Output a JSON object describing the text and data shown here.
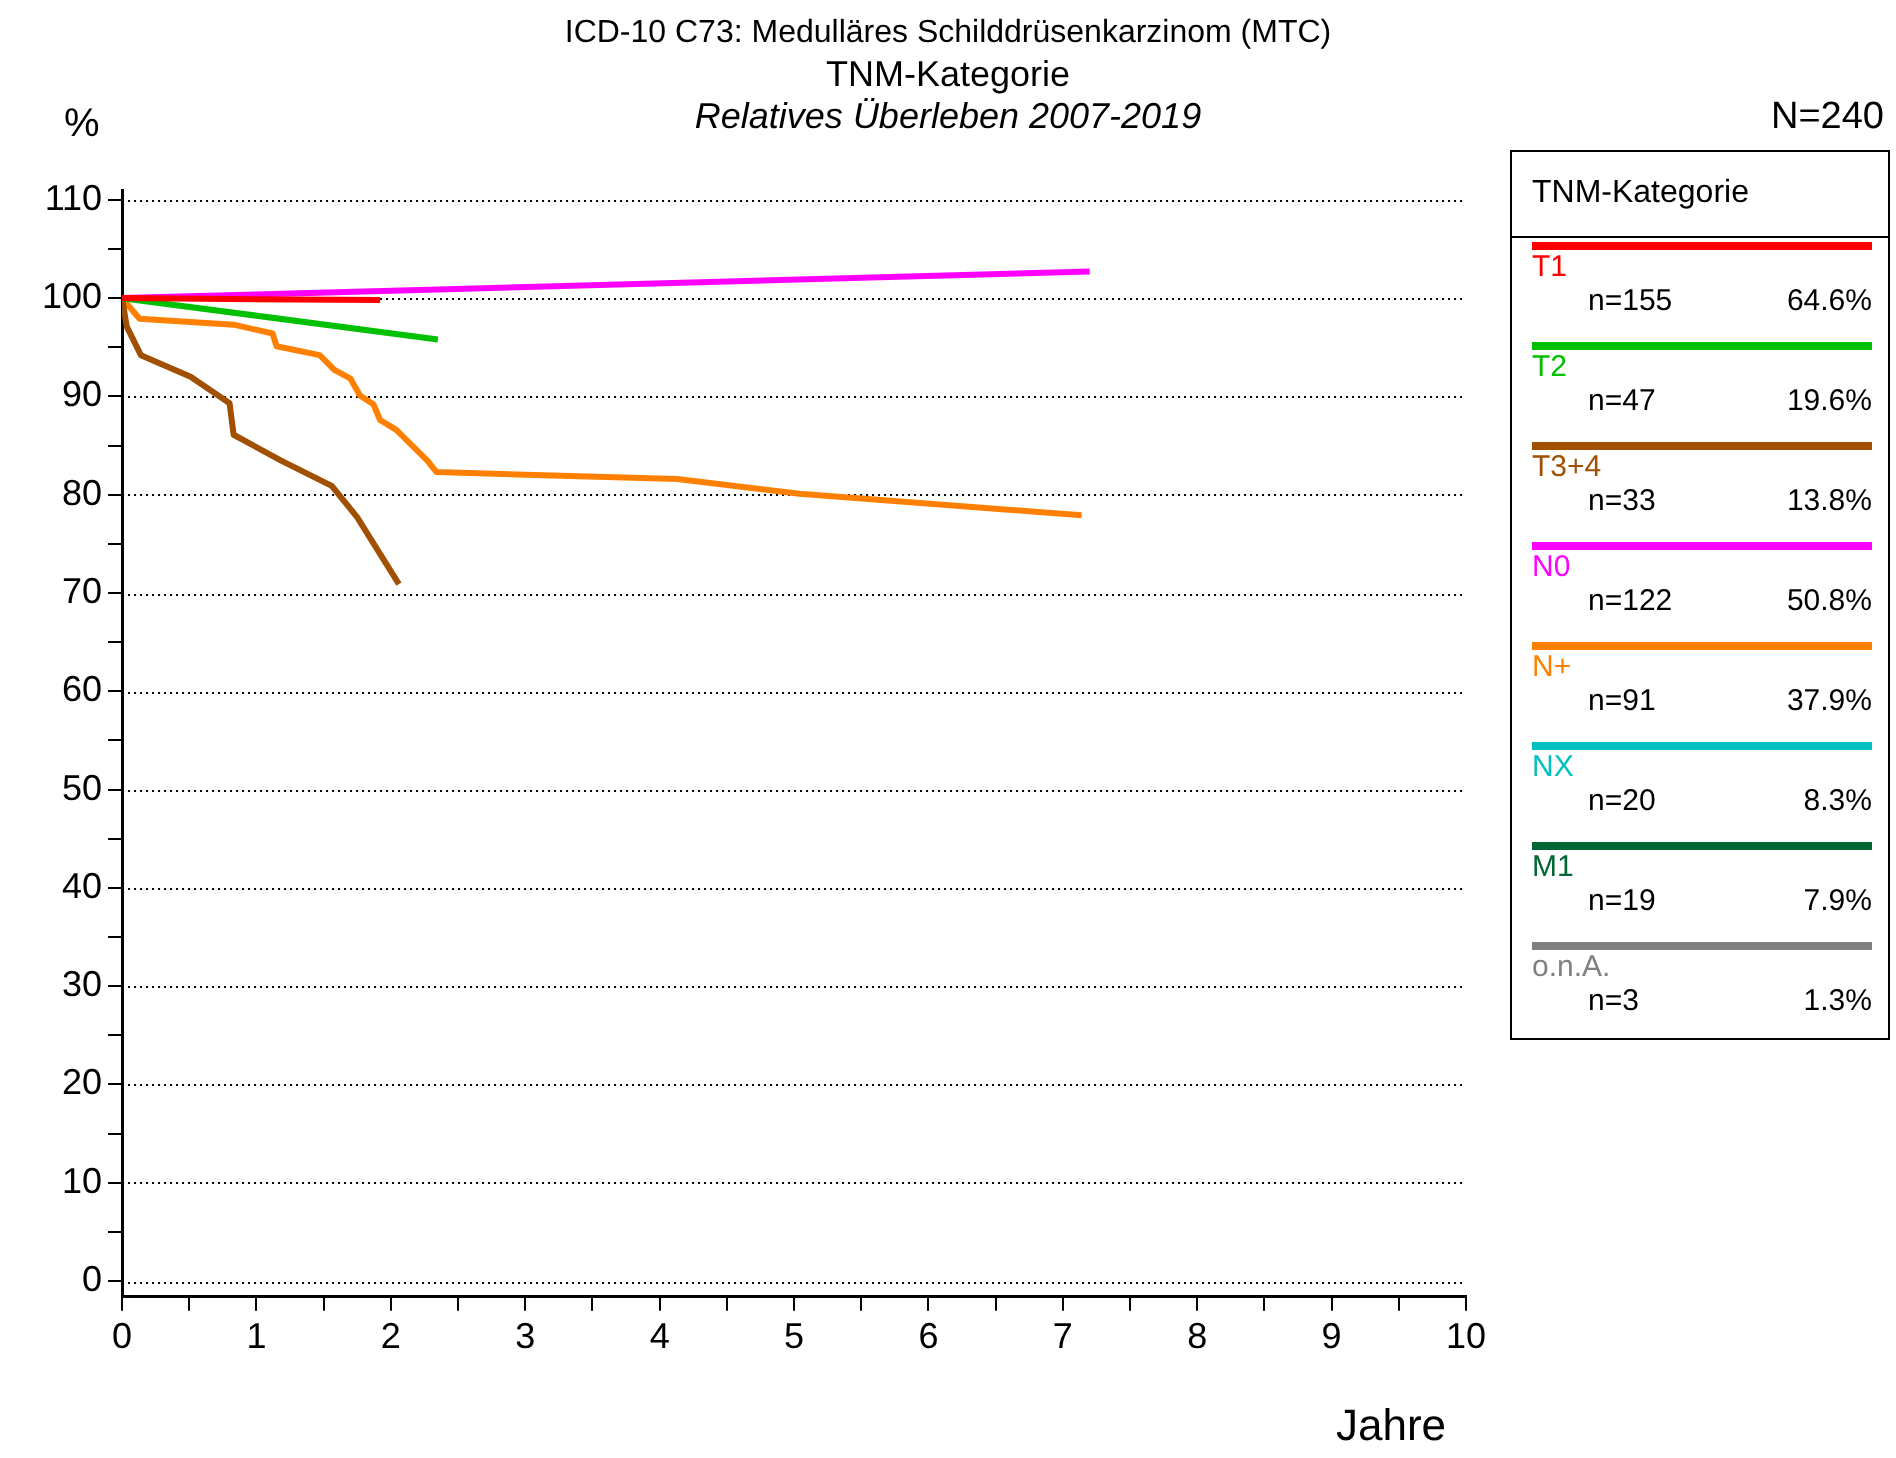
{
  "chart_data": {
    "type": "line",
    "title": "ICD-10 C73: Medulläres Schilddrüsenkarzinom (MTC)",
    "subtitle": "TNM-Kategorie",
    "xlabel": "Jahre",
    "ylabel": "%",
    "legend_title": "TNM-Kategorie",
    "legend": "right",
    "grid": "y",
    "marker": "none",
    "line_style": "solid",
    "annotations": [
      "Relatives Überleben 2007-2019",
      "N=240",
      "n=155",
      "64.6%",
      "n=47",
      "19.6%",
      "n=33",
      "13.8%",
      "n=122",
      "50.8%",
      "n=91",
      "37.9%",
      "n=20",
      "8.3%",
      "n=19",
      "7.9%",
      "n=3",
      "1.3%"
    ],
    "xlim": [
      0,
      10
    ],
    "xticks": [
      0,
      {
        "value": 0.5,
        "label": null
      },
      1,
      {
        "value": 1.5,
        "label": null
      },
      2,
      {
        "value": 2.5,
        "label": null
      },
      3,
      {
        "value": 3.5,
        "label": null
      },
      4,
      {
        "value": 4.5,
        "label": null
      },
      5,
      {
        "value": 5.5,
        "label": null
      },
      6,
      {
        "value": 6.5,
        "label": null
      },
      7,
      {
        "value": 7.5,
        "label": null
      },
      8,
      {
        "value": 8.5,
        "label": null
      },
      9,
      {
        "value": 9.5,
        "label": null
      },
      10
    ],
    "ylim": [
      -1.6,
      111
    ],
    "yticks": [
      0,
      {
        "value": 5,
        "label": null
      },
      10,
      {
        "value": 15,
        "label": null
      },
      20,
      {
        "value": 25,
        "label": null
      },
      30,
      {
        "value": 35,
        "label": null
      },
      40,
      {
        "value": 45,
        "label": null
      },
      50,
      {
        "value": 55,
        "label": null
      },
      60,
      {
        "value": 65,
        "label": null
      },
      70,
      {
        "value": 75,
        "label": null
      },
      80,
      {
        "value": 85,
        "label": null
      },
      90,
      {
        "value": 95,
        "label": null
      },
      100,
      {
        "value": 105,
        "label": null
      },
      110
    ],
    "series": [
      {
        "name": "T1",
        "color": "#ff0000",
        "x": [
          0,
          1.92
        ],
        "values": [
          100,
          99.8
        ]
      },
      {
        "name": "T2",
        "color": "#00c000",
        "x": [
          0,
          2.35
        ],
        "values": [
          100,
          95.8
        ]
      },
      {
        "name": "T3+4",
        "color": "#a05000",
        "x": [
          0,
          0.035,
          0.14,
          0.51,
          0.8,
          0.83,
          1.18,
          1.56,
          1.75,
          2.06
        ],
        "values": [
          100,
          97.1,
          94.2,
          92.0,
          89.3,
          86.1,
          83.5,
          80.9,
          77.7,
          70.9
        ]
      },
      {
        "name": "N0",
        "color": "#ff00ff",
        "x": [
          0,
          7.2
        ],
        "values": [
          100,
          102.7
        ]
      },
      {
        "name": "N+",
        "color": "#ff8000",
        "x": [
          0,
          0.13,
          0.83,
          1.12,
          1.15,
          1.47,
          1.58,
          1.7,
          1.77,
          1.87,
          1.92,
          2.04,
          2.27,
          2.34,
          4.13,
          5.04,
          7.14
        ],
        "values": [
          100,
          97.9,
          97.3,
          96.4,
          95.1,
          94.2,
          92.7,
          91.8,
          90.1,
          89.2,
          87.6,
          86.6,
          83.5,
          82.3,
          81.6,
          80.1,
          77.9
        ]
      },
      {
        "name": "NX",
        "color": "#00c0c0"
      },
      {
        "name": "M1",
        "color": "#006633"
      },
      {
        "name": "o.n.A.",
        "color": "#808080"
      }
    ]
  }
}
